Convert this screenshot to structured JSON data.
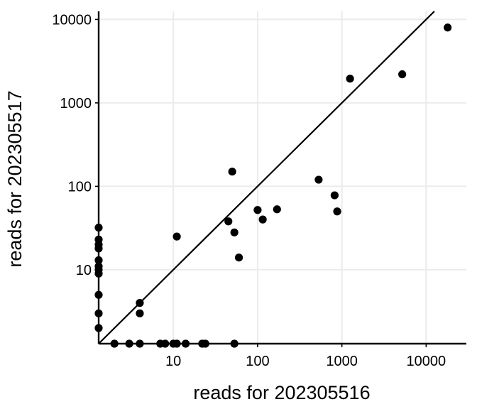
{
  "chart_data": {
    "type": "scatter",
    "title": "",
    "xlabel": "reads for 202305516",
    "ylabel": "reads for 202305517",
    "x_scale": "log10",
    "y_scale": "log10",
    "xlim": [
      1.3,
      30000
    ],
    "ylim": [
      1.3,
      12500
    ],
    "x_ticks": [
      10,
      100,
      1000,
      10000
    ],
    "x_tick_labels": [
      "10",
      "100",
      "1000",
      "10000"
    ],
    "y_ticks": [
      10,
      100,
      1000,
      10000
    ],
    "y_tick_labels": [
      "10",
      "100",
      "1000",
      "10000"
    ],
    "grid": true,
    "legend": "none",
    "reference_line": {
      "type": "identity",
      "slope": 1,
      "intercept": 0
    },
    "colors": {
      "points": "#000000",
      "line": "#000000",
      "grid": "#ebebeb",
      "axis": "#000000"
    },
    "points": [
      {
        "x": 1.3,
        "y": 32
      },
      {
        "x": 1.3,
        "y": 23
      },
      {
        "x": 1.3,
        "y": 20
      },
      {
        "x": 1.3,
        "y": 18
      },
      {
        "x": 1.3,
        "y": 13
      },
      {
        "x": 1.3,
        "y": 11
      },
      {
        "x": 1.3,
        "y": 10
      },
      {
        "x": 1.3,
        "y": 9
      },
      {
        "x": 1.3,
        "y": 5
      },
      {
        "x": 1.3,
        "y": 3
      },
      {
        "x": 1.3,
        "y": 2
      },
      {
        "x": 2,
        "y": 1.3
      },
      {
        "x": 3,
        "y": 1.3
      },
      {
        "x": 4,
        "y": 1.3
      },
      {
        "x": 4,
        "y": 4
      },
      {
        "x": 4,
        "y": 3
      },
      {
        "x": 7,
        "y": 1.3
      },
      {
        "x": 8,
        "y": 1.3
      },
      {
        "x": 10,
        "y": 1.3
      },
      {
        "x": 11,
        "y": 1.3
      },
      {
        "x": 11,
        "y": 25
      },
      {
        "x": 14,
        "y": 1.3
      },
      {
        "x": 22,
        "y": 1.3
      },
      {
        "x": 24,
        "y": 1.3
      },
      {
        "x": 45,
        "y": 38
      },
      {
        "x": 50,
        "y": 150
      },
      {
        "x": 53,
        "y": 28
      },
      {
        "x": 53,
        "y": 1.3
      },
      {
        "x": 60,
        "y": 14
      },
      {
        "x": 100,
        "y": 52
      },
      {
        "x": 115,
        "y": 40
      },
      {
        "x": 170,
        "y": 53
      },
      {
        "x": 530,
        "y": 120
      },
      {
        "x": 820,
        "y": 78
      },
      {
        "x": 880,
        "y": 50
      },
      {
        "x": 1250,
        "y": 1950
      },
      {
        "x": 5200,
        "y": 2200
      },
      {
        "x": 18000,
        "y": 8000
      }
    ]
  }
}
